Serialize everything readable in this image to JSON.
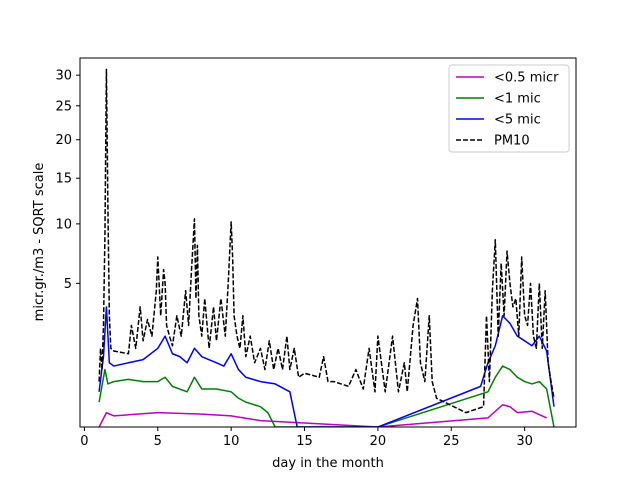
{
  "chart_data": {
    "type": "line",
    "title": "",
    "xlabel": "day in the month",
    "ylabel": "micr.gr./m3 - SQRT scale",
    "y_scale": "sqrt",
    "xlim": [
      -0.3,
      33.5
    ],
    "ylim": [
      0,
      33
    ],
    "x_ticks": [
      0,
      5,
      10,
      15,
      20,
      25,
      30
    ],
    "x_tick_labels": [
      "0",
      "5",
      "10",
      "15",
      "20",
      "25",
      "30"
    ],
    "y_ticks": [
      5,
      10,
      15,
      20,
      25,
      30
    ],
    "y_tick_labels": [
      "5",
      "10",
      "15",
      "20",
      "25",
      "30"
    ],
    "grid": false,
    "legend_position": "top-right",
    "series": [
      {
        "name": "<0.5 micr",
        "color": "#bf00bf",
        "style": "solid",
        "x": [
          1.0,
          1.5,
          2.0,
          5.0,
          8.0,
          10.0,
          12.0,
          20.0,
          27.5,
          28.5,
          29.0,
          29.5,
          30.5,
          31.5
        ],
        "y": [
          0.0,
          0.05,
          0.03,
          0.05,
          0.04,
          0.03,
          0.01,
          0.0,
          0.02,
          0.12,
          0.1,
          0.05,
          0.06,
          0.02
        ]
      },
      {
        "name": "<1 mic",
        "color": "#008000",
        "style": "solid",
        "x": [
          1.0,
          1.4,
          1.6,
          2.0,
          3.0,
          4.0,
          5.0,
          5.5,
          6.0,
          7.0,
          7.5,
          8.0,
          9.0,
          10.0,
          10.5,
          11.0,
          12.0,
          12.5,
          13.0,
          20.0,
          27.5,
          28.0,
          28.5,
          29.0,
          29.5,
          30.0,
          30.5,
          31.0,
          31.5,
          32.0
        ],
        "y": [
          0.15,
          0.8,
          0.45,
          0.5,
          0.55,
          0.5,
          0.5,
          0.6,
          0.4,
          0.3,
          0.6,
          0.35,
          0.35,
          0.3,
          0.2,
          0.15,
          0.1,
          0.05,
          0.0,
          0.0,
          0.3,
          0.6,
          0.9,
          0.8,
          0.6,
          0.5,
          0.45,
          0.5,
          0.35,
          0.0
        ]
      },
      {
        "name": "<5 mic",
        "color": "#0000ff",
        "style": "solid",
        "x": [
          1.0,
          1.3,
          1.5,
          1.7,
          2.0,
          3.0,
          4.0,
          5.0,
          5.5,
          6.0,
          6.5,
          7.0,
          7.5,
          8.0,
          9.0,
          9.5,
          10.0,
          10.5,
          11.0,
          12.0,
          13.0,
          14.0,
          14.5,
          20.0,
          27.0,
          27.5,
          28.0,
          28.5,
          29.0,
          29.5,
          30.0,
          30.5,
          31.0,
          31.5,
          32.0
        ],
        "y": [
          0.3,
          1.2,
          3.5,
          1.0,
          0.9,
          1.0,
          1.1,
          1.5,
          2.0,
          1.3,
          1.2,
          1.0,
          1.5,
          1.2,
          1.0,
          0.9,
          1.3,
          0.8,
          0.6,
          0.5,
          0.45,
          0.3,
          0.0,
          0.0,
          0.4,
          1.0,
          1.6,
          3.0,
          2.6,
          2.0,
          1.8,
          1.6,
          2.0,
          1.4,
          0.1
        ]
      },
      {
        "name": "PM10",
        "color": "#000000",
        "style": "dashed",
        "x": [
          1.0,
          1.1,
          1.2,
          1.3,
          1.4,
          1.5,
          1.6,
          1.7,
          1.8,
          2.0,
          2.5,
          3.0,
          3.2,
          3.5,
          3.8,
          4.0,
          4.3,
          4.6,
          4.9,
          5.0,
          5.2,
          5.4,
          5.5,
          5.6,
          5.8,
          6.0,
          6.3,
          6.6,
          6.9,
          7.1,
          7.3,
          7.5,
          7.6,
          7.7,
          7.8,
          8.0,
          8.2,
          8.5,
          8.8,
          9.0,
          9.3,
          9.6,
          9.8,
          10.0,
          10.1,
          10.2,
          10.4,
          10.6,
          10.8,
          11.0,
          11.3,
          11.6,
          12.0,
          12.3,
          12.6,
          12.9,
          13.2,
          13.5,
          13.8,
          14.0,
          14.3,
          14.6,
          15.0,
          15.5,
          16.0,
          16.3,
          16.6,
          17.0,
          18.0,
          18.5,
          19.0,
          19.4,
          19.8,
          20.0,
          20.5,
          21.0,
          21.4,
          21.8,
          22.0,
          22.4,
          22.7,
          22.9,
          23.2,
          23.5,
          23.7,
          24.0,
          26.0,
          27.2,
          27.4,
          27.6,
          27.8,
          28.0,
          28.2,
          28.4,
          28.6,
          28.8,
          29.0,
          29.2,
          29.4,
          29.6,
          29.8,
          30.0,
          30.2,
          30.4,
          30.6,
          30.8,
          31.0,
          31.2,
          31.4,
          31.6,
          31.8,
          32.0
        ],
        "y": [
          0.5,
          1.5,
          0.8,
          2.5,
          9.0,
          31.0,
          12.0,
          3.0,
          1.5,
          1.4,
          1.35,
          1.3,
          2.5,
          1.5,
          3.5,
          1.8,
          2.8,
          2.0,
          4.5,
          7.0,
          3.0,
          6.0,
          5.0,
          2.5,
          2.0,
          1.6,
          3.0,
          2.0,
          4.5,
          2.5,
          6.0,
          10.5,
          4.0,
          8.0,
          3.0,
          2.0,
          4.0,
          1.5,
          3.5,
          1.8,
          4.0,
          2.0,
          5.0,
          10.2,
          7.0,
          3.0,
          2.0,
          1.5,
          3.0,
          1.2,
          2.0,
          1.0,
          1.5,
          0.8,
          1.8,
          0.8,
          1.5,
          0.8,
          2.0,
          0.8,
          1.5,
          0.6,
          0.7,
          0.65,
          0.6,
          1.2,
          0.5,
          0.5,
          0.4,
          0.8,
          0.35,
          1.5,
          0.3,
          2.0,
          0.3,
          2.0,
          0.3,
          1.0,
          0.3,
          2.5,
          4.0,
          1.0,
          0.5,
          3.0,
          0.5,
          0.2,
          0.05,
          0.1,
          3.0,
          0.5,
          4.5,
          8.5,
          2.0,
          6.5,
          3.0,
          7.5,
          5.0,
          3.5,
          4.0,
          2.0,
          7.0,
          3.0,
          2.5,
          5.0,
          2.0,
          1.5,
          5.0,
          1.5,
          4.5,
          1.0,
          0.5,
          0.2
        ]
      }
    ]
  }
}
